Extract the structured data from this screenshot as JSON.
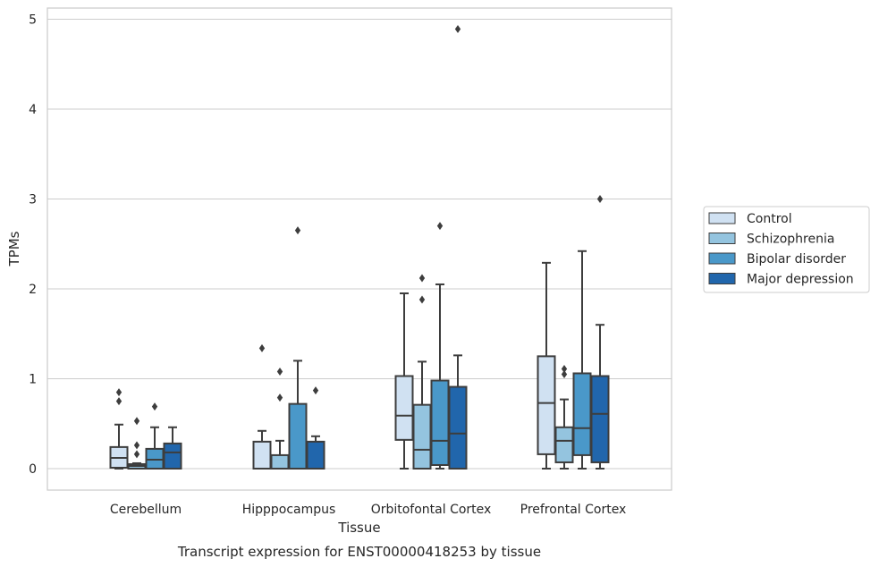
{
  "chart_data": {
    "type": "box",
    "title": "",
    "caption": "Transcript expression for ENST00000418253 by tissue",
    "xlabel": "Tissue",
    "ylabel": "TPMs",
    "ylim": [
      -0.23,
      5.13
    ],
    "yticks": [
      0,
      1,
      2,
      3,
      4,
      5
    ],
    "grid": true,
    "legend_position": "right",
    "categories": [
      "Cerebellum",
      "Hipppocampus",
      "Orbitofontal Cortex",
      "Prefrontal Cortex"
    ],
    "series": [
      {
        "name": "Control",
        "color": "#d0e1f2",
        "boxes": [
          {
            "whislo": 0.0,
            "q1": 0.01,
            "med": 0.12,
            "q3": 0.24,
            "whishi": 0.49,
            "fliers": [
              0.75,
              0.85
            ]
          },
          {
            "whislo": 0.0,
            "q1": 0.0,
            "med": 0.0,
            "q3": 0.3,
            "whishi": 0.42,
            "fliers": [
              1.34
            ]
          },
          {
            "whislo": 0.0,
            "q1": 0.32,
            "med": 0.59,
            "q3": 1.03,
            "whishi": 1.95,
            "fliers": []
          },
          {
            "whislo": 0.0,
            "q1": 0.16,
            "med": 0.73,
            "q3": 1.25,
            "whishi": 2.29,
            "fliers": []
          }
        ]
      },
      {
        "name": "Schizophrenia",
        "color": "#94c4df",
        "boxes": [
          {
            "whislo": 0.0,
            "q1": 0.0,
            "med": 0.03,
            "q3": 0.05,
            "whishi": 0.06,
            "fliers": [
              0.16,
              0.26,
              0.53
            ]
          },
          {
            "whislo": 0.0,
            "q1": 0.0,
            "med": 0.0,
            "q3": 0.15,
            "whishi": 0.31,
            "fliers": [
              0.79,
              1.08
            ]
          },
          {
            "whislo": 0.0,
            "q1": 0.0,
            "med": 0.21,
            "q3": 0.71,
            "whishi": 1.19,
            "fliers": [
              1.88,
              2.12
            ]
          },
          {
            "whislo": 0.0,
            "q1": 0.07,
            "med": 0.31,
            "q3": 0.46,
            "whishi": 0.77,
            "fliers": [
              1.05,
              1.11
            ]
          }
        ]
      },
      {
        "name": "Bipolar disorder",
        "color": "#4a98c9",
        "boxes": [
          {
            "whislo": 0.0,
            "q1": 0.0,
            "med": 0.1,
            "q3": 0.22,
            "whishi": 0.46,
            "fliers": [
              0.69
            ]
          },
          {
            "whislo": 0.0,
            "q1": 0.0,
            "med": 0.0,
            "q3": 0.72,
            "whishi": 1.2,
            "fliers": [
              2.65
            ]
          },
          {
            "whislo": 0.0,
            "q1": 0.04,
            "med": 0.31,
            "q3": 0.98,
            "whishi": 2.05,
            "fliers": [
              2.7
            ]
          },
          {
            "whislo": 0.0,
            "q1": 0.15,
            "med": 0.45,
            "q3": 1.06,
            "whishi": 2.42,
            "fliers": []
          }
        ]
      },
      {
        "name": "Major depression",
        "color": "#2166ac",
        "boxes": [
          {
            "whislo": 0.0,
            "q1": 0.0,
            "med": 0.18,
            "q3": 0.28,
            "whishi": 0.46,
            "fliers": []
          },
          {
            "whislo": 0.0,
            "q1": 0.0,
            "med": 0.0,
            "q3": 0.3,
            "whishi": 0.36,
            "fliers": [
              0.87
            ]
          },
          {
            "whislo": 0.0,
            "q1": 0.0,
            "med": 0.39,
            "q3": 0.91,
            "whishi": 1.26,
            "fliers": [
              4.89
            ]
          },
          {
            "whislo": 0.0,
            "q1": 0.07,
            "med": 0.61,
            "q3": 1.03,
            "whishi": 1.6,
            "fliers": [
              3.0
            ]
          }
        ]
      }
    ]
  }
}
